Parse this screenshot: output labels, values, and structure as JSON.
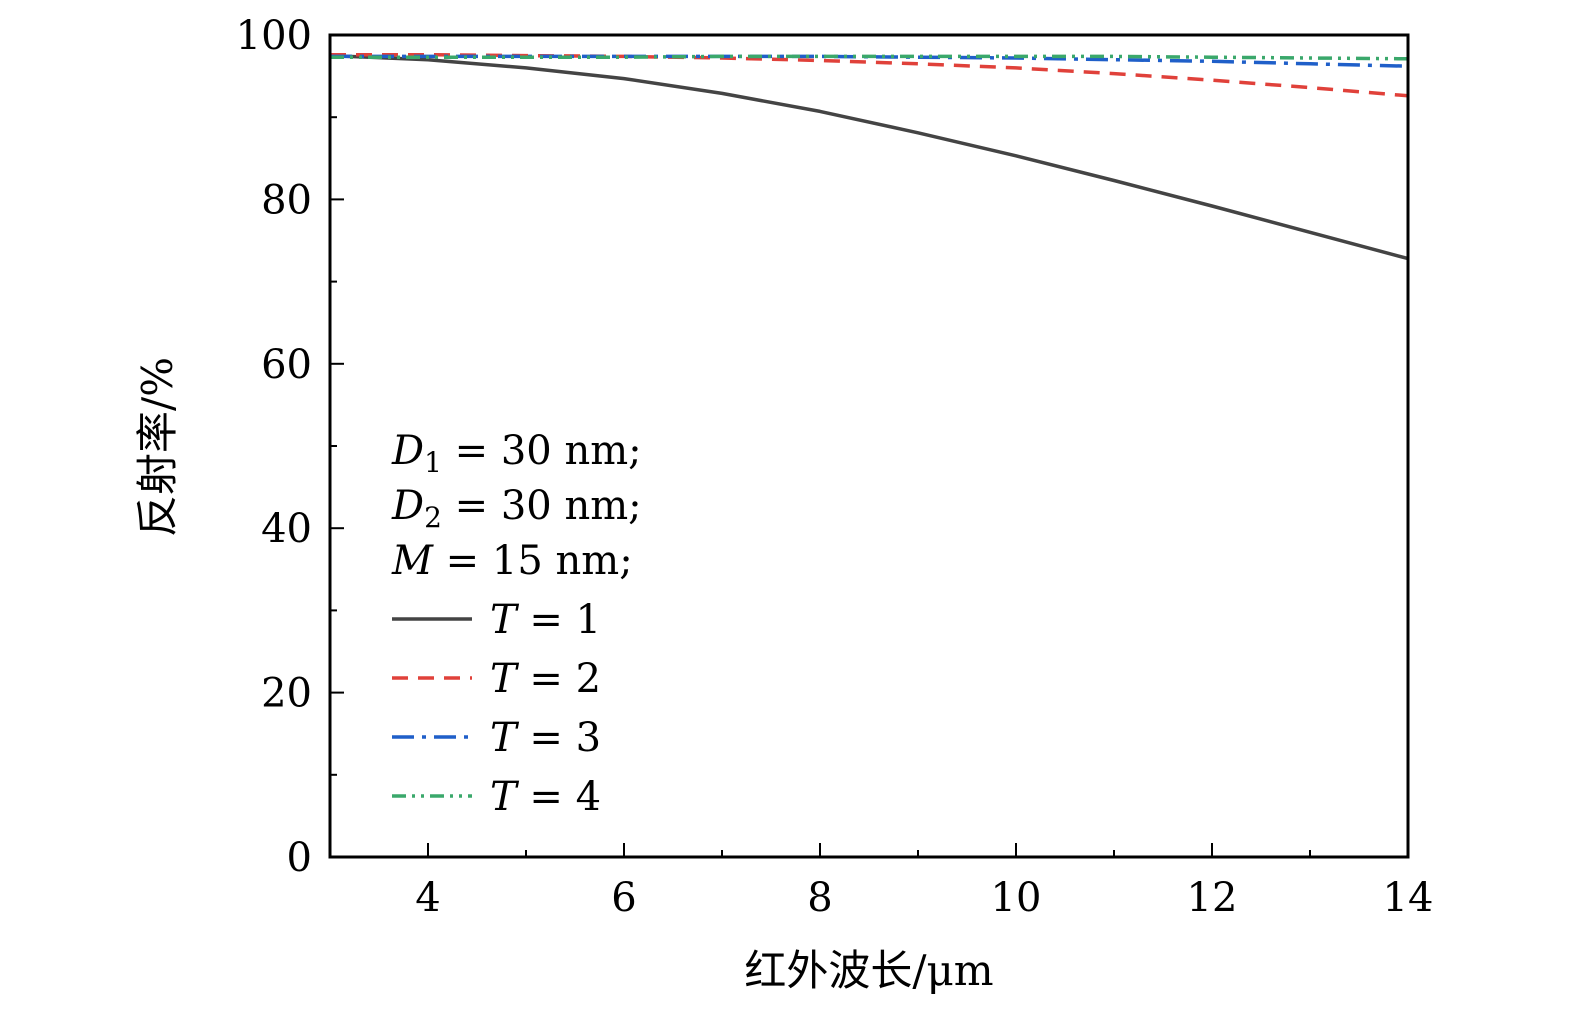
{
  "chart_data": {
    "type": "line",
    "xlabel": "红外波长/μm",
    "ylabel": "反射率/%",
    "xlim": [
      3,
      14
    ],
    "ylim": [
      0,
      100
    ],
    "xticks": [
      4,
      6,
      8,
      10,
      12,
      14
    ],
    "yticks": [
      0,
      20,
      40,
      60,
      80,
      100
    ],
    "xminor": [
      3,
      5,
      7,
      9,
      11,
      13
    ],
    "yminor": [
      10,
      30,
      50,
      70,
      90
    ],
    "grid": false,
    "legend_position": "left",
    "legend_header": [
      {
        "symbol": "D",
        "sub": "1",
        "rest": " = 30 nm;"
      },
      {
        "symbol": "D",
        "sub": "2",
        "rest": " = 30 nm;"
      },
      {
        "symbol": "M",
        "sub": "",
        "rest": " = 15 nm;"
      }
    ],
    "series": [
      {
        "name": "T = 1",
        "var": "T",
        "label_value": "= 1",
        "color": "#444444",
        "dash": "",
        "x": [
          3,
          4,
          5,
          6,
          7,
          8,
          9,
          10,
          11,
          12,
          13,
          14
        ],
        "y": [
          97.5,
          97.0,
          96.0,
          94.7,
          92.9,
          90.7,
          88.1,
          85.3,
          82.3,
          79.2,
          76.0,
          72.8
        ]
      },
      {
        "name": "T = 2",
        "var": "T",
        "label_value": "= 2",
        "color": "#e0413a",
        "dash": "16,10",
        "x": [
          3,
          4,
          5,
          6,
          7,
          8,
          9,
          10,
          11,
          12,
          13,
          14
        ],
        "y": [
          97.6,
          97.6,
          97.5,
          97.4,
          97.2,
          96.9,
          96.5,
          96.0,
          95.3,
          94.5,
          93.6,
          92.6
        ]
      },
      {
        "name": "T = 3",
        "var": "T",
        "label_value": "= 3",
        "color": "#1f5fc9",
        "dash": "22,8,4,8",
        "x": [
          3,
          4,
          5,
          6,
          7,
          8,
          9,
          10,
          11,
          12,
          13,
          14
        ],
        "y": [
          97.4,
          97.4,
          97.4,
          97.4,
          97.4,
          97.4,
          97.3,
          97.2,
          97.0,
          96.8,
          96.5,
          96.2
        ]
      },
      {
        "name": "T = 4",
        "var": "T",
        "label_value": "= 4",
        "color": "#3aa86b",
        "dash": "14,6,3,6,3,6",
        "x": [
          3,
          4,
          5,
          6,
          7,
          8,
          9,
          10,
          11,
          12,
          13,
          14
        ],
        "y": [
          97.3,
          97.3,
          97.3,
          97.3,
          97.4,
          97.4,
          97.4,
          97.4,
          97.4,
          97.3,
          97.2,
          97.1
        ]
      }
    ]
  }
}
